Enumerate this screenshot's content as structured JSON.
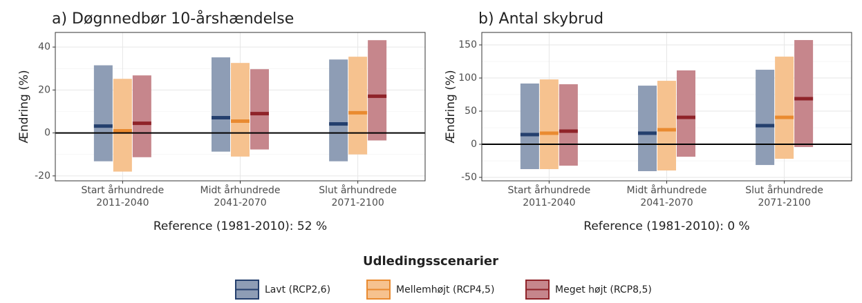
{
  "chart_data": [
    {
      "type": "crossbar",
      "title": "a) Døgnnedbør 10-årshændelse",
      "y_label": "Ændring (%)",
      "x_label": "Reference (1981-2010): 52 %",
      "categories": [
        [
          "Start århundrede",
          "2011-2040"
        ],
        [
          "Midt århundrede",
          "2041-2070"
        ],
        [
          "Slut århundrede",
          "2071-2100"
        ]
      ],
      "ylim": [
        -22.3,
        46.8
      ],
      "yticks": [
        -20,
        0,
        20,
        40
      ],
      "hline": 0,
      "grid": true,
      "series": [
        {
          "low": [
            -13.2,
            -8.7,
            -13.2
          ],
          "high": [
            31.5,
            35.2,
            34.2
          ],
          "median": [
            3.2,
            7.1,
            4.2
          ]
        },
        {
          "low": [
            -18,
            -11,
            -10
          ],
          "high": [
            25.2,
            32.6,
            35.5
          ],
          "median": [
            1,
            5.5,
            9.4
          ]
        },
        {
          "low": [
            -11.3,
            -7.7,
            -3.5
          ],
          "high": [
            26.8,
            29.7,
            43.2
          ],
          "median": [
            4.5,
            9,
            17.1
          ]
        }
      ]
    },
    {
      "type": "crossbar",
      "title": "b) Antal skybrud",
      "y_label": "Ændring (%)",
      "x_label": "Reference (1981-2010): 0 %",
      "categories": [
        [
          "Start århundrede",
          "2011-2040"
        ],
        [
          "Midt århundrede",
          "2041-2070"
        ],
        [
          "Slut århundrede",
          "2071-2100"
        ]
      ],
      "ylim": [
        -55.2,
        168.8
      ],
      "yticks": [
        -50,
        0,
        50,
        100,
        150
      ],
      "hline": 0,
      "grid": true,
      "series": [
        {
          "low": [
            -37.5,
            -40.6,
            -31.3
          ],
          "high": [
            91.7,
            88.5,
            112.5
          ],
          "median": [
            14.6,
            16.7,
            28.1
          ]
        },
        {
          "low": [
            -37.5,
            -39.6,
            -21.9
          ],
          "high": [
            97.9,
            95.8,
            132.3
          ],
          "median": [
            16.7,
            21.9,
            40.6
          ]
        },
        {
          "low": [
            -32.3,
            -18.8,
            -4.2
          ],
          "high": [
            90.6,
            111.5,
            157.3
          ],
          "median": [
            19.8,
            40.6,
            68.8
          ]
        }
      ]
    }
  ],
  "legend": {
    "title": "Udledingsscenarier",
    "position": "bottom",
    "series": [
      {
        "name": "Lavt (RCP2,6)",
        "fill": "#8e9db5",
        "color": "#243f6d"
      },
      {
        "name": "Mellemhøjt (RCP4,5)",
        "fill": "#f6c28f",
        "color": "#e98a30"
      },
      {
        "name": "Meget højt (RCP8,5)",
        "fill": "#c6868c",
        "color": "#8f2329"
      }
    ]
  }
}
